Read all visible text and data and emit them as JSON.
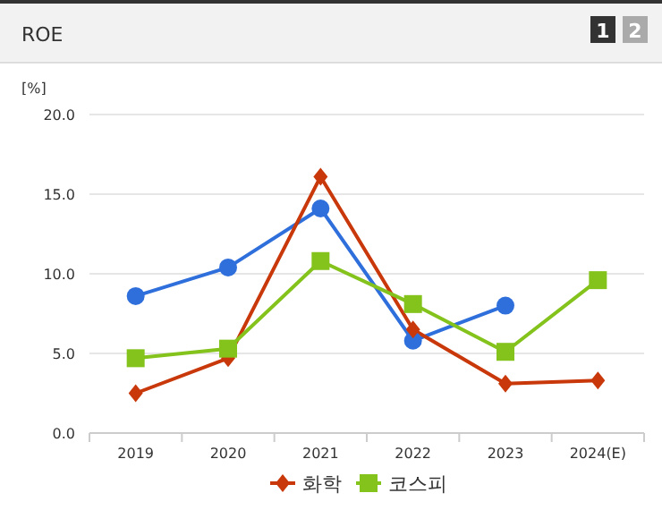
{
  "chart_data": {
    "type": "line",
    "title": "ROE",
    "ylabel": "[%]",
    "annotations": [
      "1",
      "2"
    ],
    "categories": [
      "2019",
      "2020",
      "2021",
      "2022",
      "2023",
      "2024(E)"
    ],
    "series": [
      {
        "color": "#2f6fdc",
        "marker": "circle",
        "values": [
          8.6,
          10.4,
          14.1,
          5.8,
          8.0,
          null
        ]
      },
      {
        "name": "화학",
        "color": "#c8380a",
        "marker": "diamond",
        "values": [
          2.5,
          4.7,
          16.1,
          6.5,
          3.1,
          3.3
        ]
      },
      {
        "name": "코스피",
        "color": "#84c21c",
        "marker": "square",
        "values": [
          4.7,
          5.3,
          10.8,
          8.1,
          5.1,
          9.6
        ]
      }
    ],
    "ylim": [
      0,
      20
    ],
    "yticks": [
      {
        "value": 0,
        "label": "0.0"
      },
      {
        "value": 5,
        "label": "5.0"
      },
      {
        "value": 10,
        "label": "10.0"
      },
      {
        "value": 15,
        "label": "15.0"
      },
      {
        "value": 20,
        "label": "20.0"
      }
    ],
    "grid": "y",
    "legend": "bottom",
    "line_style": "solid"
  }
}
